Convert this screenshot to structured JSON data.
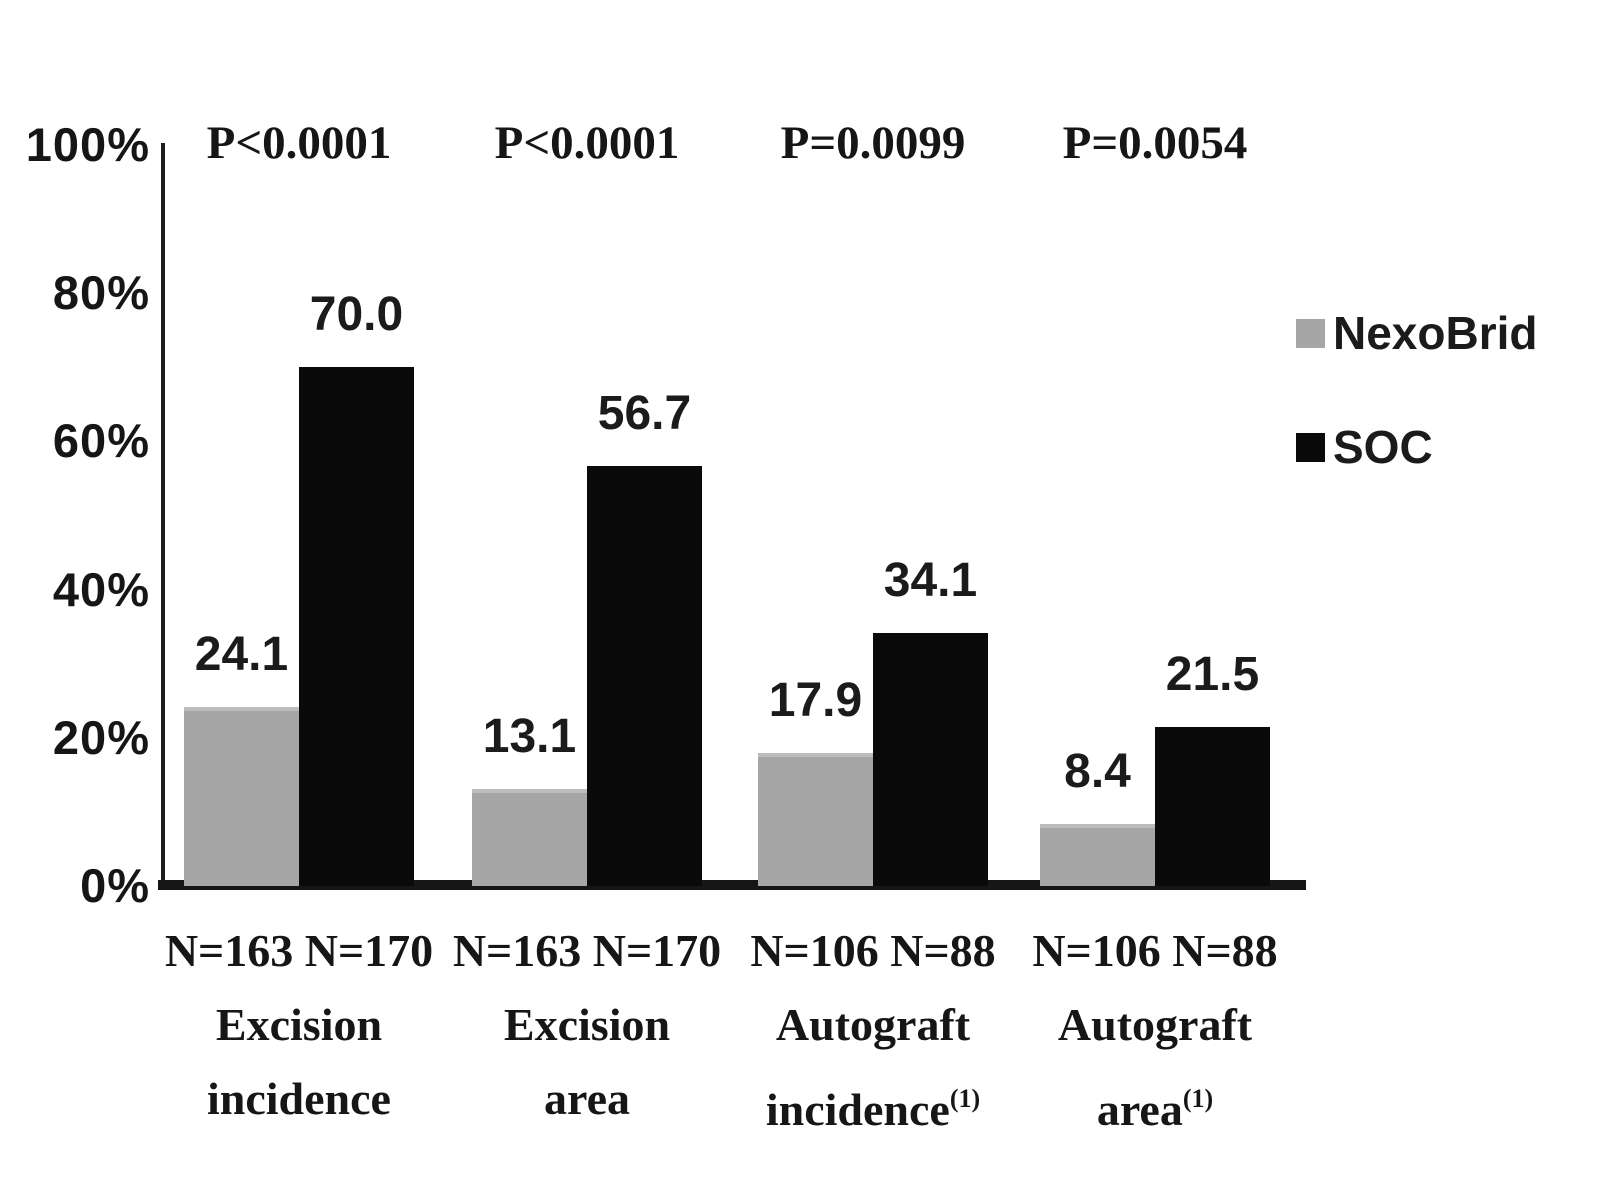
{
  "chart_data": {
    "type": "bar",
    "title": "",
    "xlabel": "",
    "ylabel": "",
    "ylim": [
      0,
      100
    ],
    "grid": false,
    "legend_position": "right",
    "y_ticks": [
      {
        "label": "100%",
        "value": 100
      },
      {
        "label": "80%",
        "value": 80
      },
      {
        "label": "60%",
        "value": 60
      },
      {
        "label": "40%",
        "value": 40
      },
      {
        "label": "20%",
        "value": 20
      },
      {
        "label": "0%",
        "value": 0
      }
    ],
    "series": [
      {
        "name": "NexoBrid",
        "color": "#a6a6a6",
        "values": [
          24.1,
          13.1,
          17.9,
          8.4
        ]
      },
      {
        "name": "SOC",
        "color": "#0a0a0a",
        "values": [
          70.0,
          56.7,
          34.1,
          21.5
        ]
      }
    ],
    "groups": [
      {
        "p_label": "P<0.0001",
        "n_labels": [
          "N=163",
          "N=170"
        ],
        "cat_lines": [
          "Excision",
          "incidence"
        ],
        "cat_sup": ""
      },
      {
        "p_label": "P<0.0001",
        "n_labels": [
          "N=163",
          "N=170"
        ],
        "cat_lines": [
          "Excision",
          "area"
        ],
        "cat_sup": ""
      },
      {
        "p_label": "P=0.0099",
        "n_labels": [
          "N=106",
          "N=88"
        ],
        "cat_lines": [
          "Autograft",
          "incidence"
        ],
        "cat_sup": "(1)"
      },
      {
        "p_label": "P=0.0054",
        "n_labels": [
          "N=106",
          "N=88"
        ],
        "cat_lines": [
          "Autograft",
          "area"
        ],
        "cat_sup": "(1)"
      }
    ]
  },
  "colors": {
    "background": "#ffffff",
    "nexobrid": "#a6a6a6",
    "soc": "#0a0a0a",
    "axis": "#1d1d1d",
    "text": "#161616"
  }
}
